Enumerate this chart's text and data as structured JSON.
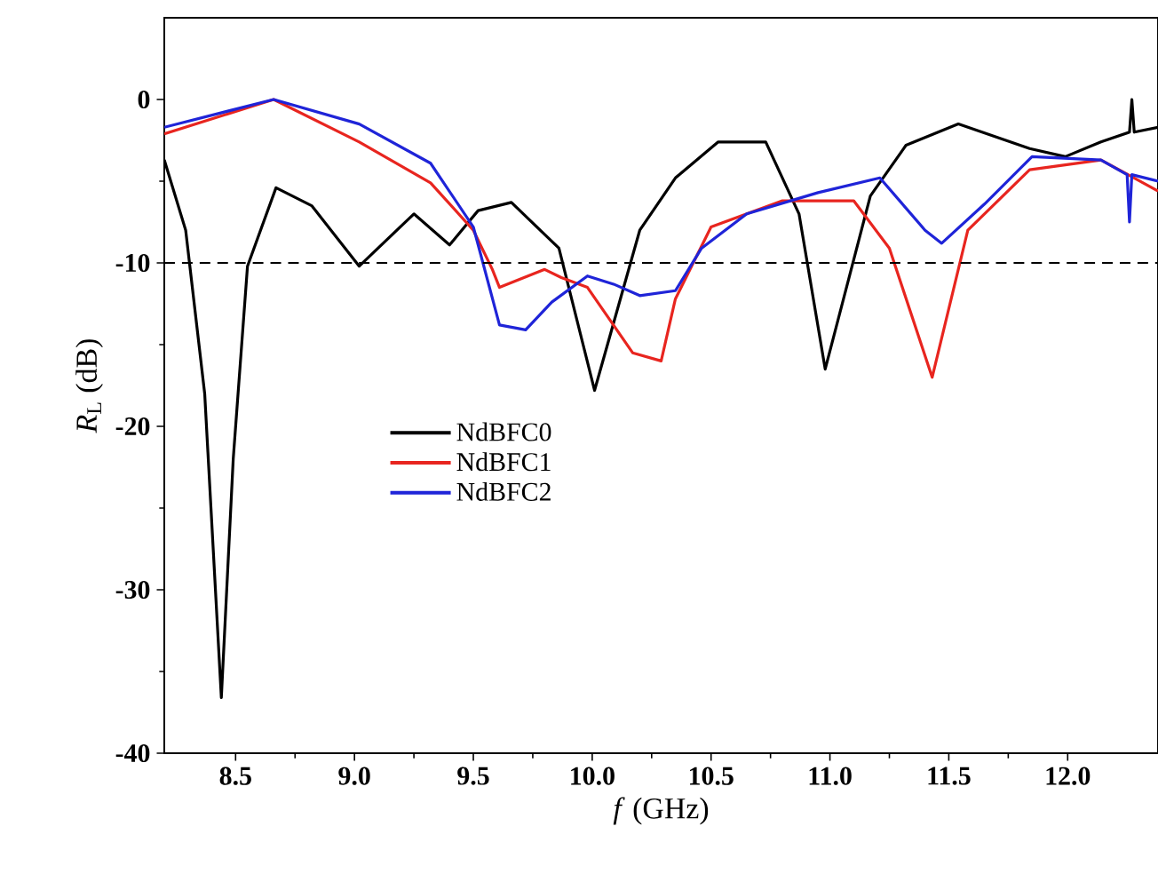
{
  "chart_data": {
    "type": "line",
    "xlabel": "*f* (GHz)",
    "ylabel": "*R*$_{L}$ (dB)",
    "xlim": [
      8.2,
      12.38
    ],
    "ylim": [
      -40,
      5
    ],
    "xticks": [
      8.5,
      {
        "value": 9,
        "label": "9.0"
      },
      9.5,
      {
        "value": 10,
        "label": "10.0"
      },
      10.5,
      {
        "value": 11,
        "label": "11.0"
      },
      11.5,
      {
        "value": 12,
        "label": "12.0"
      }
    ],
    "yticks": [
      -40,
      -30,
      -20,
      -10,
      0
    ],
    "grid": false,
    "legend": "center left",
    "marker": "none",
    "line_style": "solid",
    "ref_lines": [
      {
        "axis": "y",
        "value": -10,
        "color": "#000000",
        "line_style": "dashed"
      }
    ],
    "series": [
      {
        "name": "NdBFC0",
        "color": "#000000",
        "x": [
          8.2,
          8.29,
          8.37,
          8.44,
          8.49,
          8.55,
          8.67,
          8.82,
          9.02,
          9.25,
          9.4,
          9.52,
          9.66,
          9.86,
          10.01,
          10.2,
          10.35,
          10.53,
          10.73,
          10.87,
          10.98,
          11.17,
          11.32,
          11.54,
          11.84,
          11.99,
          12.14,
          12.26,
          12.27,
          12.28,
          12.38
        ],
        "values": [
          -3.7,
          -8,
          -18,
          -36.6,
          -22,
          -10.2,
          -5.4,
          -6.5,
          -10.2,
          -7,
          -8.9,
          -6.8,
          -6.3,
          -9.1,
          -17.8,
          -8,
          -4.8,
          -2.6,
          -2.6,
          -7,
          -16.5,
          -5.9,
          -2.8,
          -1.5,
          -3,
          -3.5,
          -2.6,
          -2.0,
          0,
          -2.0,
          -1.7
        ]
      },
      {
        "name": "NdBFC1",
        "color": "#e8251f",
        "x": [
          8.2,
          8.66,
          9.02,
          9.32,
          9.5,
          9.58,
          9.61,
          9.8,
          9.87,
          9.98,
          10.17,
          10.29,
          10.35,
          10.5,
          10.8,
          11.1,
          11.25,
          11.43,
          11.58,
          11.84,
          12.14,
          12.38
        ],
        "values": [
          -2.1,
          0,
          -2.6,
          -5.1,
          -8,
          -10.4,
          -11.5,
          -10.4,
          -10.9,
          -11.5,
          -15.5,
          -16,
          -12.2,
          -7.8,
          -6.2,
          -6.2,
          -9.1,
          -17,
          -8,
          -4.3,
          -3.7,
          -5.6
        ]
      },
      {
        "name": "NdBFC2",
        "color": "#1f24d8",
        "x": [
          8.2,
          8.66,
          9.02,
          9.32,
          9.5,
          9.61,
          9.72,
          9.83,
          9.98,
          10.09,
          10.2,
          10.35,
          10.46,
          10.65,
          10.95,
          11.21,
          11.4,
          11.47,
          11.65,
          11.85,
          12.14,
          12.25,
          12.26,
          12.27,
          12.38
        ],
        "values": [
          -1.7,
          0,
          -1.5,
          -3.9,
          -7.8,
          -13.8,
          -14.1,
          -12.4,
          -10.8,
          -11.3,
          -12,
          -11.7,
          -9.1,
          -7,
          -5.7,
          -4.8,
          -8,
          -8.8,
          -6.4,
          -3.5,
          -3.7,
          -4.6,
          -7.5,
          -4.6,
          -5
        ]
      }
    ]
  }
}
